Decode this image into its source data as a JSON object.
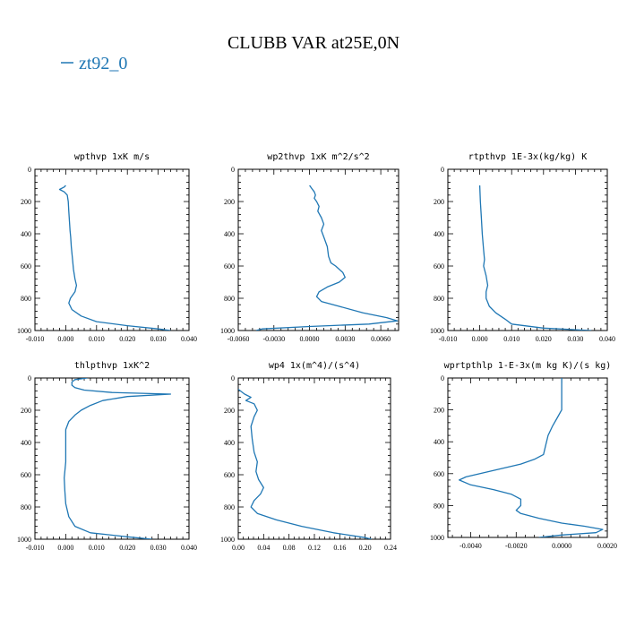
{
  "figure": {
    "title": "CLUBB VAR at25E,0N",
    "legend": [
      {
        "label": "zt92_0",
        "color": "#1f77b4"
      }
    ]
  },
  "chart_data": [
    {
      "type": "line",
      "title": "wpthvp  1xK m/s",
      "xlim": [
        -0.01,
        0.04
      ],
      "ylim": [
        0,
        1000
      ],
      "y_inverted": true,
      "xticks": [
        -0.01,
        0.0,
        0.01,
        0.02,
        0.03,
        0.04
      ],
      "xtick_labels": [
        "-0.010",
        "0.000",
        "0.010",
        "0.020",
        "0.030",
        "0.040"
      ],
      "yticks": [
        0,
        200,
        400,
        600,
        800,
        1000
      ],
      "ytick_labels": [
        "0",
        "200",
        "400",
        "600",
        "800",
        "1000"
      ],
      "series": [
        {
          "color": "#1f77b4",
          "points": [
            [
              0.0,
              100
            ],
            [
              -0.0005,
              110
            ],
            [
              -0.002,
              125
            ],
            [
              -0.0005,
              140
            ],
            [
              0.0005,
              160
            ],
            [
              0.0008,
              200
            ],
            [
              0.001,
              260
            ],
            [
              0.0012,
              320
            ],
            [
              0.0014,
              380
            ],
            [
              0.0016,
              420
            ],
            [
              0.0018,
              480
            ],
            [
              0.0022,
              560
            ],
            [
              0.0025,
              620
            ],
            [
              0.003,
              680
            ],
            [
              0.0035,
              720
            ],
            [
              0.003,
              760
            ],
            [
              0.0015,
              800
            ],
            [
              0.001,
              830
            ],
            [
              0.002,
              870
            ],
            [
              0.005,
              910
            ],
            [
              0.01,
              945
            ],
            [
              0.02,
              970
            ],
            [
              0.03,
              990
            ],
            [
              0.034,
              1000
            ]
          ]
        }
      ]
    },
    {
      "type": "line",
      "title": "wp2thvp  1xK m^2/s^2",
      "xlim": [
        -0.006,
        0.0075
      ],
      "ylim": [
        0,
        1000
      ],
      "y_inverted": true,
      "xticks": [
        -0.006,
        -0.003,
        0.0,
        0.003,
        0.006
      ],
      "xtick_labels": [
        "-0.0060",
        "-0.0030",
        "0.0000",
        "0.0030",
        "0.0060"
      ],
      "yticks": [
        0,
        200,
        400,
        600,
        800,
        1000
      ],
      "ytick_labels": [
        "0",
        "200",
        "400",
        "600",
        "800",
        "1000"
      ],
      "series": [
        {
          "color": "#1f77b4",
          "points": [
            [
              0.0,
              100
            ],
            [
              0.0002,
              120
            ],
            [
              0.0004,
              140
            ],
            [
              0.0005,
              160
            ],
            [
              0.0004,
              180
            ],
            [
              0.0006,
              200
            ],
            [
              0.0008,
              230
            ],
            [
              0.0007,
              260
            ],
            [
              0.001,
              300
            ],
            [
              0.0012,
              340
            ],
            [
              0.001,
              380
            ],
            [
              0.0012,
              420
            ],
            [
              0.0015,
              480
            ],
            [
              0.0016,
              540
            ],
            [
              0.0018,
              580
            ],
            [
              0.0022,
              600
            ],
            [
              0.0028,
              640
            ],
            [
              0.003,
              670
            ],
            [
              0.0025,
              700
            ],
            [
              0.0015,
              730
            ],
            [
              0.0008,
              760
            ],
            [
              0.0006,
              790
            ],
            [
              0.001,
              820
            ],
            [
              0.0025,
              850
            ],
            [
              0.0045,
              890
            ],
            [
              0.0065,
              920
            ],
            [
              0.0074,
              940
            ],
            [
              0.005,
              960
            ],
            [
              0.0,
              975
            ],
            [
              -0.004,
              990
            ],
            [
              -0.0045,
              1000
            ]
          ]
        }
      ]
    },
    {
      "type": "line",
      "title": "rtpthvp  1E-3x(kg/kg) K",
      "xlim": [
        -0.01,
        0.04
      ],
      "ylim": [
        0,
        1000
      ],
      "y_inverted": true,
      "xticks": [
        -0.01,
        0.0,
        0.01,
        0.02,
        0.03,
        0.04
      ],
      "xtick_labels": [
        "-0.010",
        "0.000",
        "0.010",
        "0.020",
        "0.030",
        "0.040"
      ],
      "yticks": [
        0,
        200,
        400,
        600,
        800,
        1000
      ],
      "ytick_labels": [
        "0",
        "200",
        "400",
        "600",
        "800",
        "1000"
      ],
      "series": [
        {
          "color": "#1f77b4",
          "points": [
            [
              0.0,
              100
            ],
            [
              0.0002,
              200
            ],
            [
              0.0005,
              300
            ],
            [
              0.0008,
              400
            ],
            [
              0.0012,
              500
            ],
            [
              0.0015,
              560
            ],
            [
              0.0012,
              600
            ],
            [
              0.002,
              660
            ],
            [
              0.0025,
              720
            ],
            [
              0.002,
              760
            ],
            [
              0.002,
              800
            ],
            [
              0.003,
              850
            ],
            [
              0.005,
              890
            ],
            [
              0.008,
              930
            ],
            [
              0.01,
              960
            ],
            [
              0.02,
              985
            ],
            [
              0.035,
              1000
            ]
          ]
        }
      ]
    },
    {
      "type": "line",
      "title": "thlpthvp  1xK^2",
      "xlim": [
        -0.01,
        0.04
      ],
      "ylim": [
        0,
        1000
      ],
      "y_inverted": true,
      "xticks": [
        -0.01,
        0.0,
        0.01,
        0.02,
        0.03,
        0.04
      ],
      "xtick_labels": [
        "-0.010",
        "0.000",
        "0.010",
        "0.020",
        "0.030",
        "0.040"
      ],
      "yticks": [
        0,
        200,
        400,
        600,
        800,
        1000
      ],
      "ytick_labels": [
        "0",
        "200",
        "400",
        "600",
        "800",
        "1000"
      ],
      "series": [
        {
          "color": "#1f77b4",
          "points": [
            [
              0.007,
              0
            ],
            [
              0.003,
              10
            ],
            [
              0.002,
              25
            ],
            [
              0.002,
              45
            ],
            [
              0.003,
              60
            ],
            [
              0.006,
              75
            ],
            [
              0.015,
              90
            ],
            [
              0.034,
              100
            ],
            [
              0.02,
              115
            ],
            [
              0.012,
              140
            ],
            [
              0.008,
              170
            ],
            [
              0.005,
              200
            ],
            [
              0.003,
              230
            ],
            [
              0.001,
              270
            ],
            [
              0.0,
              320
            ],
            [
              0.0,
              420
            ],
            [
              0.0,
              520
            ],
            [
              -0.0005,
              620
            ],
            [
              -0.0003,
              700
            ],
            [
              0.0,
              780
            ],
            [
              0.001,
              860
            ],
            [
              0.003,
              920
            ],
            [
              0.008,
              960
            ],
            [
              0.02,
              985
            ],
            [
              0.028,
              1000
            ]
          ]
        }
      ]
    },
    {
      "type": "line",
      "title": "wp4  1x(m^4)/(s^4)",
      "xlim": [
        0.0,
        0.24
      ],
      "ylim": [
        0,
        1000
      ],
      "y_inverted": true,
      "xticks": [
        0.0,
        0.04,
        0.08,
        0.12,
        0.16,
        0.2,
        0.24
      ],
      "xtick_labels": [
        "0.00",
        "0.04",
        "0.08",
        "0.12",
        "0.16",
        "0.20",
        "0.24"
      ],
      "yticks": [
        0,
        200,
        400,
        600,
        800,
        1000
      ],
      "ytick_labels": [
        "0",
        "200",
        "400",
        "600",
        "800",
        "1000"
      ],
      "series": [
        {
          "color": "#1f77b4",
          "points": [
            [
              0.0,
              70
            ],
            [
              0.01,
              100
            ],
            [
              0.02,
              120
            ],
            [
              0.012,
              140
            ],
            [
              0.025,
              160
            ],
            [
              0.03,
              200
            ],
            [
              0.025,
              240
            ],
            [
              0.02,
              300
            ],
            [
              0.022,
              380
            ],
            [
              0.025,
              460
            ],
            [
              0.03,
              520
            ],
            [
              0.028,
              580
            ],
            [
              0.032,
              630
            ],
            [
              0.04,
              680
            ],
            [
              0.035,
              720
            ],
            [
              0.025,
              760
            ],
            [
              0.02,
              800
            ],
            [
              0.03,
              840
            ],
            [
              0.06,
              880
            ],
            [
              0.1,
              920
            ],
            [
              0.15,
              960
            ],
            [
              0.2,
              990
            ],
            [
              0.21,
              1000
            ]
          ]
        }
      ]
    },
    {
      "type": "line",
      "title": "wprtpthlp  1-E-3x(m kg K)/(s kg)",
      "xlim": [
        -0.005,
        0.002
      ],
      "ylim": [
        0,
        1000
      ],
      "y_inverted": true,
      "xticks": [
        -0.004,
        -0.002,
        0.0,
        0.002
      ],
      "xtick_labels": [
        "-0.0040",
        "-0.0020",
        "0.0000",
        "0.0020"
      ],
      "yticks": [
        0,
        200,
        400,
        600,
        800,
        1000
      ],
      "ytick_labels": [
        "0",
        "200",
        "400",
        "600",
        "800",
        "1000"
      ],
      "series": [
        {
          "color": "#1f77b4",
          "points": [
            [
              0.0,
              0
            ],
            [
              0.0,
              100
            ],
            [
              0.0,
              200
            ],
            [
              -0.0002,
              250
            ],
            [
              -0.0004,
              300
            ],
            [
              -0.0006,
              360
            ],
            [
              -0.0007,
              420
            ],
            [
              -0.0008,
              480
            ],
            [
              -0.0012,
              510
            ],
            [
              -0.0018,
              540
            ],
            [
              -0.003,
              580
            ],
            [
              -0.0042,
              620
            ],
            [
              -0.0045,
              640
            ],
            [
              -0.004,
              670
            ],
            [
              -0.003,
              700
            ],
            [
              -0.0022,
              730
            ],
            [
              -0.0018,
              760
            ],
            [
              -0.0018,
              800
            ],
            [
              -0.002,
              830
            ],
            [
              -0.0018,
              850
            ],
            [
              -0.001,
              880
            ],
            [
              0.0,
              910
            ],
            [
              0.001,
              930
            ],
            [
              0.0018,
              950
            ],
            [
              0.0015,
              970
            ],
            [
              0.0,
              985
            ],
            [
              -0.001,
              1000
            ]
          ]
        }
      ]
    }
  ]
}
